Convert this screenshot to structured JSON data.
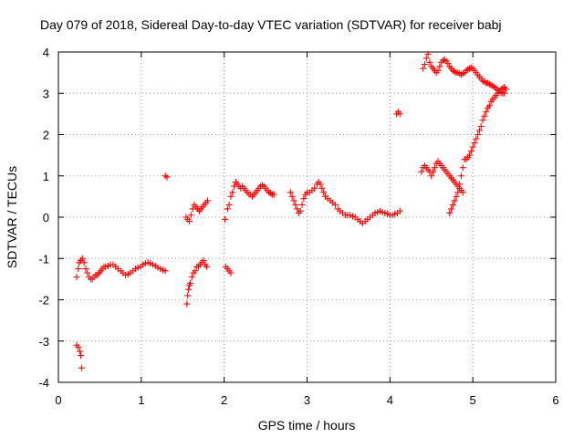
{
  "chart_data": {
    "type": "scatter",
    "title": "Day 079 of 2018, Sidereal Day-to-day VTEC variation (SDTVAR) for receiver babj",
    "xlabel": "GPS time / hours",
    "ylabel": "SDTVAR / TECUs",
    "xlim": [
      0,
      6
    ],
    "ylim": [
      -4,
      4
    ],
    "xticks": [
      0,
      1,
      2,
      3,
      4,
      5,
      6
    ],
    "yticks": [
      -4,
      -3,
      -2,
      -1,
      0,
      1,
      2,
      3,
      4
    ],
    "grid": true,
    "marker": "+",
    "color": "#ff0000",
    "series": [
      {
        "name": "SDTVAR",
        "points": [
          [
            0.22,
            -3.1
          ],
          [
            0.24,
            -3.15
          ],
          [
            0.26,
            -3.25
          ],
          [
            0.27,
            -3.35
          ],
          [
            0.28,
            -3.65
          ],
          [
            0.22,
            -1.45
          ],
          [
            0.24,
            -1.25
          ],
          [
            0.25,
            -1.1
          ],
          [
            0.27,
            -1.05
          ],
          [
            0.29,
            -1.0
          ],
          [
            0.31,
            -1.1
          ],
          [
            0.33,
            -1.25
          ],
          [
            0.35,
            -1.35
          ],
          [
            0.37,
            -1.45
          ],
          [
            0.39,
            -1.5
          ],
          [
            0.41,
            -1.5
          ],
          [
            0.43,
            -1.45
          ],
          [
            0.45,
            -1.4
          ],
          [
            0.47,
            -1.4
          ],
          [
            0.49,
            -1.35
          ],
          [
            0.51,
            -1.3
          ],
          [
            0.53,
            -1.25
          ],
          [
            0.55,
            -1.2
          ],
          [
            0.57,
            -1.2
          ],
          [
            0.6,
            -1.18
          ],
          [
            0.63,
            -1.15
          ],
          [
            0.66,
            -1.15
          ],
          [
            0.69,
            -1.2
          ],
          [
            0.72,
            -1.25
          ],
          [
            0.75,
            -1.3
          ],
          [
            0.78,
            -1.35
          ],
          [
            0.81,
            -1.4
          ],
          [
            0.84,
            -1.38
          ],
          [
            0.87,
            -1.35
          ],
          [
            0.9,
            -1.3
          ],
          [
            0.93,
            -1.25
          ],
          [
            0.96,
            -1.22
          ],
          [
            0.99,
            -1.2
          ],
          [
            1.02,
            -1.15
          ],
          [
            1.05,
            -1.12
          ],
          [
            1.08,
            -1.1
          ],
          [
            1.11,
            -1.12
          ],
          [
            1.14,
            -1.15
          ],
          [
            1.17,
            -1.18
          ],
          [
            1.2,
            -1.22
          ],
          [
            1.23,
            -1.25
          ],
          [
            1.26,
            -1.28
          ],
          [
            1.29,
            -1.3
          ],
          [
            1.29,
            1.0
          ],
          [
            1.31,
            0.97
          ],
          [
            1.55,
            -2.1
          ],
          [
            1.56,
            -1.9
          ],
          [
            1.57,
            -1.75
          ],
          [
            1.58,
            -1.65
          ],
          [
            1.59,
            -1.6
          ],
          [
            1.61,
            -1.45
          ],
          [
            1.63,
            -1.35
          ],
          [
            1.65,
            -1.3
          ],
          [
            1.67,
            -1.2
          ],
          [
            1.69,
            -1.2
          ],
          [
            1.71,
            -1.15
          ],
          [
            1.73,
            -1.1
          ],
          [
            1.75,
            -1.05
          ],
          [
            1.77,
            -1.15
          ],
          [
            1.79,
            -1.2
          ],
          [
            1.54,
            0.0
          ],
          [
            1.56,
            -0.05
          ],
          [
            1.58,
            -0.1
          ],
          [
            1.6,
            0.05
          ],
          [
            1.62,
            0.2
          ],
          [
            1.64,
            0.3
          ],
          [
            1.66,
            0.25
          ],
          [
            1.68,
            0.2
          ],
          [
            1.7,
            0.15
          ],
          [
            1.72,
            0.2
          ],
          [
            1.74,
            0.25
          ],
          [
            1.76,
            0.3
          ],
          [
            1.78,
            0.35
          ],
          [
            1.8,
            0.4
          ],
          [
            2.01,
            -0.05
          ],
          [
            2.02,
            -1.2
          ],
          [
            2.04,
            -1.25
          ],
          [
            2.06,
            -1.3
          ],
          [
            2.08,
            -1.35
          ],
          [
            2.04,
            0.2
          ],
          [
            2.06,
            0.3
          ],
          [
            2.08,
            0.5
          ],
          [
            2.1,
            0.6
          ],
          [
            2.12,
            0.75
          ],
          [
            2.14,
            0.85
          ],
          [
            2.16,
            0.8
          ],
          [
            2.18,
            0.75
          ],
          [
            2.2,
            0.7
          ],
          [
            2.22,
            0.75
          ],
          [
            2.24,
            0.7
          ],
          [
            2.26,
            0.65
          ],
          [
            2.28,
            0.6
          ],
          [
            2.3,
            0.55
          ],
          [
            2.32,
            0.55
          ],
          [
            2.34,
            0.5
          ],
          [
            2.36,
            0.55
          ],
          [
            2.38,
            0.6
          ],
          [
            2.4,
            0.65
          ],
          [
            2.42,
            0.7
          ],
          [
            2.44,
            0.75
          ],
          [
            2.46,
            0.78
          ],
          [
            2.48,
            0.75
          ],
          [
            2.5,
            0.7
          ],
          [
            2.52,
            0.65
          ],
          [
            2.54,
            0.6
          ],
          [
            2.56,
            0.58
          ],
          [
            2.58,
            0.55
          ],
          [
            2.6,
            0.55
          ],
          [
            2.8,
            0.6
          ],
          [
            2.82,
            0.5
          ],
          [
            2.84,
            0.4
          ],
          [
            2.86,
            0.3
          ],
          [
            2.88,
            0.2
          ],
          [
            2.9,
            0.1
          ],
          [
            2.92,
            0.15
          ],
          [
            2.94,
            0.3
          ],
          [
            2.96,
            0.45
          ],
          [
            2.98,
            0.55
          ],
          [
            3.0,
            0.6
          ],
          [
            3.03,
            0.6
          ],
          [
            3.06,
            0.65
          ],
          [
            3.09,
            0.7
          ],
          [
            3.12,
            0.8
          ],
          [
            3.14,
            0.85
          ],
          [
            3.16,
            0.8
          ],
          [
            3.18,
            0.7
          ],
          [
            3.2,
            0.6
          ],
          [
            3.22,
            0.5
          ],
          [
            3.25,
            0.45
          ],
          [
            3.28,
            0.4
          ],
          [
            3.31,
            0.35
          ],
          [
            3.34,
            0.3
          ],
          [
            3.37,
            0.2
          ],
          [
            3.4,
            0.15
          ],
          [
            3.43,
            0.1
          ],
          [
            3.46,
            0.05
          ],
          [
            3.49,
            0.05
          ],
          [
            3.52,
            0.05
          ],
          [
            3.55,
            0.02
          ],
          [
            3.58,
            0.0
          ],
          [
            3.61,
            -0.05
          ],
          [
            3.64,
            -0.1
          ],
          [
            3.67,
            -0.15
          ],
          [
            3.7,
            -0.1
          ],
          [
            3.73,
            -0.05
          ],
          [
            3.76,
            0.0
          ],
          [
            3.79,
            0.05
          ],
          [
            3.82,
            0.1
          ],
          [
            3.85,
            0.12
          ],
          [
            3.88,
            0.15
          ],
          [
            3.91,
            0.12
          ],
          [
            3.94,
            0.1
          ],
          [
            3.97,
            0.08
          ],
          [
            4.0,
            0.05
          ],
          [
            4.03,
            0.05
          ],
          [
            4.06,
            0.08
          ],
          [
            4.09,
            0.1
          ],
          [
            4.12,
            0.15
          ],
          [
            4.08,
            2.5
          ],
          [
            4.1,
            2.55
          ],
          [
            4.12,
            2.5
          ],
          [
            4.38,
            1.1
          ],
          [
            4.4,
            1.2
          ],
          [
            4.42,
            1.25
          ],
          [
            4.44,
            1.2
          ],
          [
            4.46,
            1.15
          ],
          [
            4.48,
            1.1
          ],
          [
            4.5,
            1.0
          ],
          [
            4.52,
            1.1
          ],
          [
            4.54,
            1.2
          ],
          [
            4.56,
            1.3
          ],
          [
            4.58,
            1.35
          ],
          [
            4.6,
            1.3
          ],
          [
            4.62,
            1.25
          ],
          [
            4.64,
            1.2
          ],
          [
            4.66,
            1.15
          ],
          [
            4.68,
            1.1
          ],
          [
            4.7,
            1.05
          ],
          [
            4.72,
            1.0
          ],
          [
            4.74,
            0.95
          ],
          [
            4.76,
            0.9
          ],
          [
            4.78,
            0.85
          ],
          [
            4.8,
            0.8
          ],
          [
            4.82,
            0.75
          ],
          [
            4.84,
            0.7
          ],
          [
            4.86,
            0.65
          ],
          [
            4.88,
            0.6
          ],
          [
            4.72,
            0.1
          ],
          [
            4.74,
            0.2
          ],
          [
            4.76,
            0.3
          ],
          [
            4.78,
            0.4
          ],
          [
            4.8,
            0.5
          ],
          [
            4.82,
            0.6
          ],
          [
            4.84,
            0.8
          ],
          [
            4.86,
            1.0
          ],
          [
            4.88,
            1.2
          ],
          [
            4.9,
            1.4
          ],
          [
            4.92,
            1.4
          ],
          [
            4.94,
            1.45
          ],
          [
            4.96,
            1.5
          ],
          [
            4.98,
            1.6
          ],
          [
            5.0,
            1.7
          ],
          [
            5.02,
            1.8
          ],
          [
            5.04,
            1.9
          ],
          [
            5.06,
            2.0
          ],
          [
            5.08,
            2.1
          ],
          [
            5.1,
            2.2
          ],
          [
            5.12,
            2.35
          ],
          [
            5.14,
            2.45
          ],
          [
            5.16,
            2.55
          ],
          [
            5.18,
            2.65
          ],
          [
            5.2,
            2.7
          ],
          [
            5.22,
            2.8
          ],
          [
            5.24,
            2.85
          ],
          [
            5.26,
            2.9
          ],
          [
            5.28,
            2.95
          ],
          [
            5.3,
            3.0
          ],
          [
            5.32,
            3.05
          ],
          [
            5.34,
            3.1
          ],
          [
            5.36,
            3.12
          ],
          [
            5.38,
            3.15
          ],
          [
            5.4,
            3.1
          ],
          [
            4.4,
            3.6
          ],
          [
            4.42,
            3.7
          ],
          [
            4.44,
            3.85
          ],
          [
            4.46,
            3.95
          ],
          [
            4.48,
            3.75
          ],
          [
            4.5,
            3.65
          ],
          [
            4.52,
            3.6
          ],
          [
            4.54,
            3.55
          ],
          [
            4.56,
            3.5
          ],
          [
            4.58,
            3.55
          ],
          [
            4.6,
            3.65
          ],
          [
            4.62,
            3.75
          ],
          [
            4.64,
            3.8
          ],
          [
            4.66,
            3.82
          ],
          [
            4.68,
            3.78
          ],
          [
            4.7,
            3.72
          ],
          [
            4.72,
            3.65
          ],
          [
            4.74,
            3.6
          ],
          [
            4.76,
            3.55
          ],
          [
            4.78,
            3.52
          ],
          [
            4.8,
            3.5
          ],
          [
            4.82,
            3.5
          ],
          [
            4.84,
            3.48
          ],
          [
            4.86,
            3.45
          ],
          [
            4.88,
            3.48
          ],
          [
            4.9,
            3.5
          ],
          [
            4.92,
            3.55
          ],
          [
            4.94,
            3.58
          ],
          [
            4.96,
            3.6
          ],
          [
            4.98,
            3.62
          ],
          [
            5.0,
            3.6
          ],
          [
            5.02,
            3.55
          ],
          [
            5.04,
            3.5
          ],
          [
            5.06,
            3.45
          ],
          [
            5.08,
            3.4
          ],
          [
            5.1,
            3.35
          ],
          [
            5.12,
            3.3
          ],
          [
            5.14,
            3.28
          ],
          [
            5.16,
            3.25
          ],
          [
            5.18,
            3.25
          ],
          [
            5.2,
            3.22
          ],
          [
            5.22,
            3.2
          ],
          [
            5.24,
            3.18
          ],
          [
            5.26,
            3.15
          ],
          [
            5.28,
            3.12
          ],
          [
            5.3,
            3.08
          ],
          [
            5.32,
            3.05
          ],
          [
            5.34,
            3.02
          ],
          [
            5.36,
            3.0
          ],
          [
            5.38,
            3.0
          ]
        ]
      }
    ]
  }
}
